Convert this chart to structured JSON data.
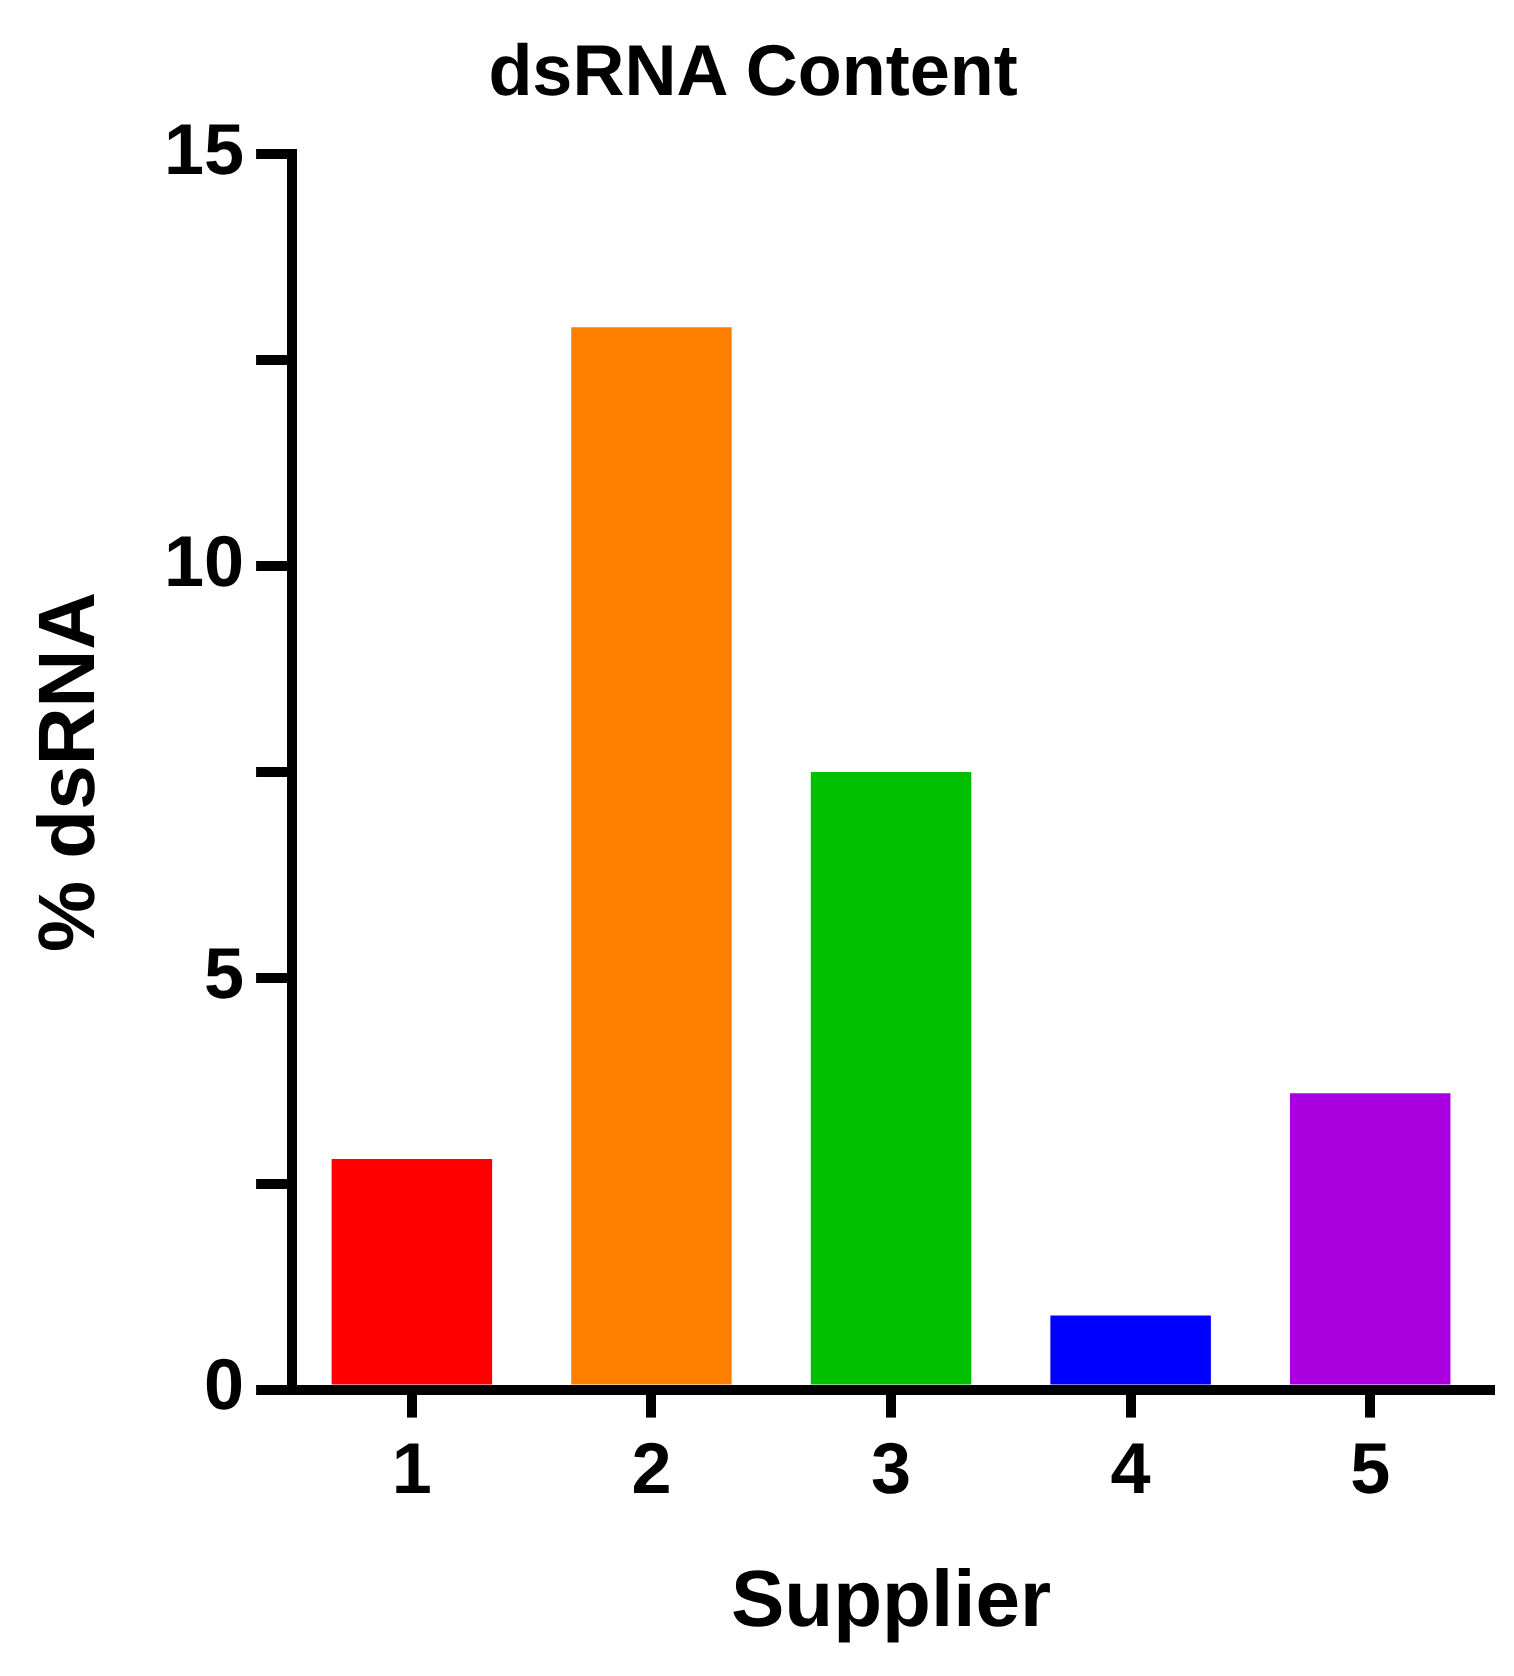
{
  "chart_data": {
    "type": "bar",
    "title": "dsRNA Content",
    "xlabel": "Supplier",
    "ylabel": "% dsRNA",
    "categories": [
      "1",
      "2",
      "3",
      "4",
      "5"
    ],
    "values": [
      2.8,
      12.9,
      7.5,
      0.9,
      3.6
    ],
    "colors": [
      "#ff0000",
      "#ff8000",
      "#00c000",
      "#0000ff",
      "#aa00e0"
    ],
    "ylim": [
      0,
      15
    ],
    "yticks": [
      0,
      {
        "value": 2.5,
        "label": null
      },
      5,
      {
        "value": 7.5,
        "label": null
      },
      10,
      {
        "value": 12.5,
        "label": null
      },
      15
    ],
    "grid": false
  }
}
